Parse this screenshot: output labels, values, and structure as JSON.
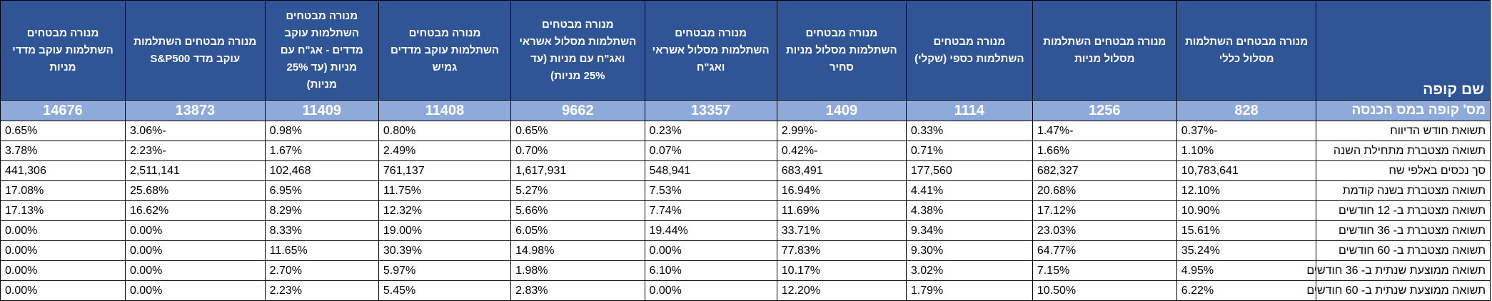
{
  "table": {
    "corner_label": "שם קופה",
    "columns": [
      "מנורה מבטחים השתלמות מסלול כללי",
      "מנורה מבטחים השתלמות מסלול מניות",
      "מנורה מבטחים השתלמות כספי (שקלי)",
      "מנורה מבטחים השתלמות מסלול מניות סחיר",
      "מנורה מבטחים השתלמות מסלול אשראי ואג\"ח",
      "מנורה מבטחים השתלמות מסלול אשראי ואג\"ח עם מניות (עד 25% מניות)",
      "מנורה מבטחים השתלמות עוקב מדדים גמיש",
      "מנורה מבטחים השתלמות עוקב מדדים - אג\"ח עם מניות (עד 25% מניות)",
      "מנורה מבטחים השתלמות עוקב מדד S&P500",
      "מנורה מבטחים השתלמות עוקב מדדי מניות"
    ],
    "id_row": {
      "label": "מס' קופה במס הכנסה",
      "values": [
        "828",
        "1256",
        "1114",
        "1409",
        "13357",
        "9662",
        "11408",
        "11409",
        "13873",
        "14676"
      ]
    },
    "rows": [
      {
        "label": "תשואת חודש הדיווח",
        "values": [
          "-0.37%",
          "-1.47%",
          "0.33%",
          "-2.99%",
          "0.23%",
          "0.65%",
          "0.80%",
          "0.98%",
          "-3.06%",
          "0.65%"
        ]
      },
      {
        "label": "תשואה מצטברת מתחילת השנה",
        "values": [
          "1.10%",
          "1.66%",
          "0.71%",
          "-0.42%",
          "0.07%",
          "0.70%",
          "2.49%",
          "1.67%",
          "-2.23%",
          "3.78%"
        ]
      },
      {
        "label": "סך נכסים באלפי שח",
        "values": [
          "10,783,641",
          "682,327",
          "177,560",
          "683,491",
          "548,941",
          "1,617,931",
          "761,137",
          "102,468",
          "2,511,141",
          "441,306"
        ]
      },
      {
        "label": "תשואה מצטברת בשנה קודמת",
        "values": [
          "12.10%",
          "20.68%",
          "4.41%",
          "16.94%",
          "7.53%",
          "5.27%",
          "11.75%",
          "6.95%",
          "25.68%",
          "17.08%"
        ]
      },
      {
        "label": "תשואה מצטברת ב- 12 חודשים",
        "values": [
          "10.90%",
          "17.12%",
          "4.38%",
          "11.69%",
          "7.74%",
          "5.66%",
          "12.32%",
          "8.29%",
          "16.62%",
          "17.13%"
        ]
      },
      {
        "label": "תשואה מצטברת ב- 36 חודשים",
        "values": [
          "15.61%",
          "23.03%",
          "9.34%",
          "33.71%",
          "19.44%",
          "6.05%",
          "19.00%",
          "8.33%",
          "0.00%",
          "0.00%"
        ]
      },
      {
        "label": "תשואה מצטברת ב- 60 חודשים",
        "values": [
          "35.24%",
          "64.77%",
          "9.30%",
          "77.83%",
          "0.00%",
          "14.98%",
          "30.39%",
          "11.65%",
          "0.00%",
          "0.00%"
        ]
      },
      {
        "label": "תשואה ממוצעת שנתית ב- 36 חודשים",
        "values": [
          "4.95%",
          "7.15%",
          "3.02%",
          "10.17%",
          "6.10%",
          "1.98%",
          "5.97%",
          "2.70%",
          "0.00%",
          "0.00%"
        ]
      },
      {
        "label": "תשואה ממוצעת שנתית ב- 60 חודשים",
        "values": [
          "6.22%",
          "10.50%",
          "1.79%",
          "12.20%",
          "0.00%",
          "2.83%",
          "5.45%",
          "2.23%",
          "0.00%",
          "0.00%"
        ]
      }
    ]
  }
}
